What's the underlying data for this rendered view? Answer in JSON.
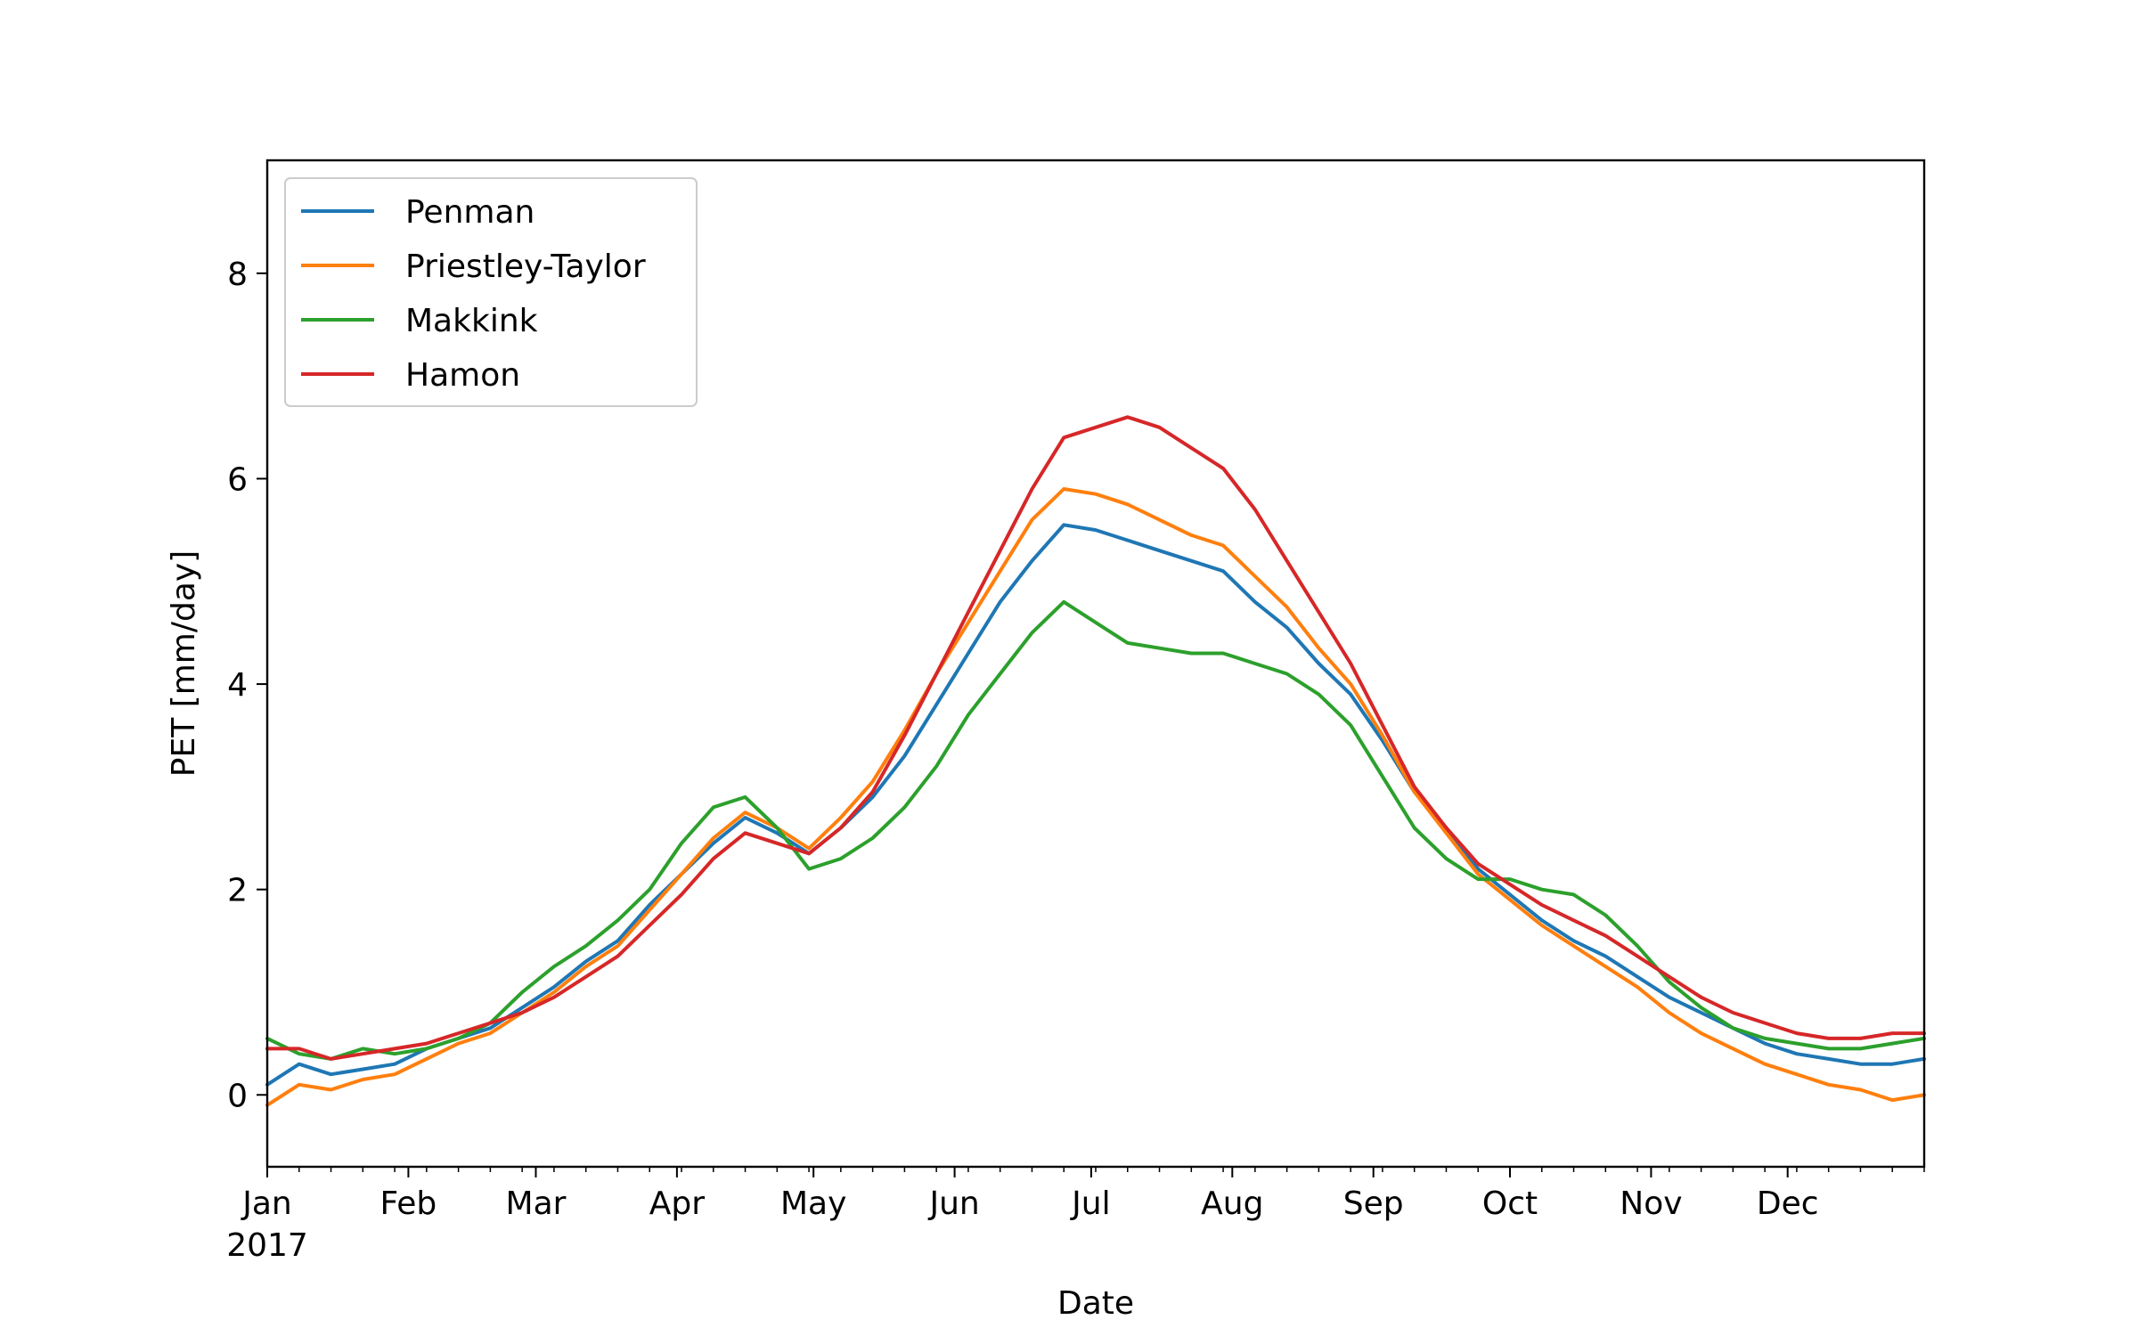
{
  "chart_data": {
    "type": "line",
    "title": "",
    "xlabel": "Date",
    "ylabel": "PET [mm/day]",
    "x_start": "2017-01-01",
    "x_end": "2017-12-31",
    "x_tick_labels": [
      "Jan",
      "Feb",
      "Mar",
      "Apr",
      "May",
      "Jun",
      "Jul",
      "Aug",
      "Sep",
      "Oct",
      "Nov",
      "Dec"
    ],
    "x_year_label": "2017",
    "y_ticks": [
      0,
      2,
      4,
      6,
      8
    ],
    "ylim": [
      -0.7,
      9.1
    ],
    "grid": false,
    "legend_position": "upper-left",
    "series": [
      {
        "name": "Penman",
        "color": "#1f77b4",
        "points": [
          [
            "2017-01-01",
            0.1
          ],
          [
            "2017-01-08",
            0.3
          ],
          [
            "2017-01-15",
            0.2
          ],
          [
            "2017-01-22",
            0.25
          ],
          [
            "2017-01-29",
            0.3
          ],
          [
            "2017-02-05",
            0.45
          ],
          [
            "2017-02-12",
            0.55
          ],
          [
            "2017-02-19",
            0.65
          ],
          [
            "2017-02-26",
            0.85
          ],
          [
            "2017-03-05",
            1.05
          ],
          [
            "2017-03-12",
            1.3
          ],
          [
            "2017-03-19",
            1.5
          ],
          [
            "2017-03-26",
            1.85
          ],
          [
            "2017-04-02",
            2.15
          ],
          [
            "2017-04-09",
            2.45
          ],
          [
            "2017-04-16",
            2.7
          ],
          [
            "2017-04-23",
            2.55
          ],
          [
            "2017-04-30",
            2.35
          ],
          [
            "2017-05-07",
            2.6
          ],
          [
            "2017-05-14",
            2.9
          ],
          [
            "2017-05-21",
            3.3
          ],
          [
            "2017-05-28",
            3.8
          ],
          [
            "2017-06-04",
            4.3
          ],
          [
            "2017-06-11",
            4.8
          ],
          [
            "2017-06-18",
            5.2
          ],
          [
            "2017-06-25",
            5.55
          ],
          [
            "2017-07-02",
            5.5
          ],
          [
            "2017-07-09",
            5.4
          ],
          [
            "2017-07-16",
            5.3
          ],
          [
            "2017-07-23",
            5.2
          ],
          [
            "2017-07-30",
            5.1
          ],
          [
            "2017-08-06",
            4.8
          ],
          [
            "2017-08-13",
            4.55
          ],
          [
            "2017-08-20",
            4.2
          ],
          [
            "2017-08-27",
            3.9
          ],
          [
            "2017-09-03",
            3.45
          ],
          [
            "2017-09-10",
            2.95
          ],
          [
            "2017-09-17",
            2.6
          ],
          [
            "2017-09-24",
            2.2
          ],
          [
            "2017-10-01",
            1.95
          ],
          [
            "2017-10-08",
            1.7
          ],
          [
            "2017-10-15",
            1.5
          ],
          [
            "2017-10-22",
            1.35
          ],
          [
            "2017-10-29",
            1.15
          ],
          [
            "2017-11-05",
            0.95
          ],
          [
            "2017-11-12",
            0.8
          ],
          [
            "2017-11-19",
            0.65
          ],
          [
            "2017-11-26",
            0.5
          ],
          [
            "2017-12-03",
            0.4
          ],
          [
            "2017-12-10",
            0.35
          ],
          [
            "2017-12-17",
            0.3
          ],
          [
            "2017-12-24",
            0.3
          ],
          [
            "2017-12-31",
            0.35
          ]
        ]
      },
      {
        "name": "Priestley-Taylor",
        "color": "#ff7f0e",
        "points": [
          [
            "2017-01-01",
            -0.1
          ],
          [
            "2017-01-08",
            0.1
          ],
          [
            "2017-01-15",
            0.05
          ],
          [
            "2017-01-22",
            0.15
          ],
          [
            "2017-01-29",
            0.2
          ],
          [
            "2017-02-05",
            0.35
          ],
          [
            "2017-02-12",
            0.5
          ],
          [
            "2017-02-19",
            0.6
          ],
          [
            "2017-02-26",
            0.8
          ],
          [
            "2017-03-05",
            1.0
          ],
          [
            "2017-03-12",
            1.25
          ],
          [
            "2017-03-19",
            1.45
          ],
          [
            "2017-03-26",
            1.8
          ],
          [
            "2017-04-02",
            2.15
          ],
          [
            "2017-04-09",
            2.5
          ],
          [
            "2017-04-16",
            2.75
          ],
          [
            "2017-04-23",
            2.6
          ],
          [
            "2017-04-30",
            2.4
          ],
          [
            "2017-05-07",
            2.7
          ],
          [
            "2017-05-14",
            3.05
          ],
          [
            "2017-05-21",
            3.55
          ],
          [
            "2017-05-28",
            4.1
          ],
          [
            "2017-06-04",
            4.6
          ],
          [
            "2017-06-11",
            5.1
          ],
          [
            "2017-06-18",
            5.6
          ],
          [
            "2017-06-25",
            5.9
          ],
          [
            "2017-07-02",
            5.85
          ],
          [
            "2017-07-09",
            5.75
          ],
          [
            "2017-07-16",
            5.6
          ],
          [
            "2017-07-23",
            5.45
          ],
          [
            "2017-07-30",
            5.35
          ],
          [
            "2017-08-06",
            5.05
          ],
          [
            "2017-08-13",
            4.75
          ],
          [
            "2017-08-20",
            4.35
          ],
          [
            "2017-08-27",
            4.0
          ],
          [
            "2017-09-03",
            3.5
          ],
          [
            "2017-09-10",
            2.95
          ],
          [
            "2017-09-17",
            2.55
          ],
          [
            "2017-09-24",
            2.15
          ],
          [
            "2017-10-01",
            1.9
          ],
          [
            "2017-10-08",
            1.65
          ],
          [
            "2017-10-15",
            1.45
          ],
          [
            "2017-10-22",
            1.25
          ],
          [
            "2017-10-29",
            1.05
          ],
          [
            "2017-11-05",
            0.8
          ],
          [
            "2017-11-12",
            0.6
          ],
          [
            "2017-11-19",
            0.45
          ],
          [
            "2017-11-26",
            0.3
          ],
          [
            "2017-12-03",
            0.2
          ],
          [
            "2017-12-10",
            0.1
          ],
          [
            "2017-12-17",
            0.05
          ],
          [
            "2017-12-24",
            -0.05
          ],
          [
            "2017-12-31",
            0.0
          ]
        ]
      },
      {
        "name": "Makkink",
        "color": "#2ca02c",
        "points": [
          [
            "2017-01-01",
            0.55
          ],
          [
            "2017-01-08",
            0.4
          ],
          [
            "2017-01-15",
            0.35
          ],
          [
            "2017-01-22",
            0.45
          ],
          [
            "2017-01-29",
            0.4
          ],
          [
            "2017-02-05",
            0.45
          ],
          [
            "2017-02-12",
            0.55
          ],
          [
            "2017-02-19",
            0.7
          ],
          [
            "2017-02-26",
            1.0
          ],
          [
            "2017-03-05",
            1.25
          ],
          [
            "2017-03-12",
            1.45
          ],
          [
            "2017-03-19",
            1.7
          ],
          [
            "2017-03-26",
            2.0
          ],
          [
            "2017-04-02",
            2.45
          ],
          [
            "2017-04-09",
            2.8
          ],
          [
            "2017-04-16",
            2.9
          ],
          [
            "2017-04-23",
            2.6
          ],
          [
            "2017-04-30",
            2.2
          ],
          [
            "2017-05-07",
            2.3
          ],
          [
            "2017-05-14",
            2.5
          ],
          [
            "2017-05-21",
            2.8
          ],
          [
            "2017-05-28",
            3.2
          ],
          [
            "2017-06-04",
            3.7
          ],
          [
            "2017-06-11",
            4.1
          ],
          [
            "2017-06-18",
            4.5
          ],
          [
            "2017-06-25",
            4.8
          ],
          [
            "2017-07-02",
            4.6
          ],
          [
            "2017-07-09",
            4.4
          ],
          [
            "2017-07-16",
            4.35
          ],
          [
            "2017-07-23",
            4.3
          ],
          [
            "2017-07-30",
            4.3
          ],
          [
            "2017-08-06",
            4.2
          ],
          [
            "2017-08-13",
            4.1
          ],
          [
            "2017-08-20",
            3.9
          ],
          [
            "2017-08-27",
            3.6
          ],
          [
            "2017-09-03",
            3.1
          ],
          [
            "2017-09-10",
            2.6
          ],
          [
            "2017-09-17",
            2.3
          ],
          [
            "2017-09-24",
            2.1
          ],
          [
            "2017-10-01",
            2.1
          ],
          [
            "2017-10-08",
            2.0
          ],
          [
            "2017-10-15",
            1.95
          ],
          [
            "2017-10-22",
            1.75
          ],
          [
            "2017-10-29",
            1.45
          ],
          [
            "2017-11-05",
            1.1
          ],
          [
            "2017-11-12",
            0.85
          ],
          [
            "2017-11-19",
            0.65
          ],
          [
            "2017-11-26",
            0.55
          ],
          [
            "2017-12-03",
            0.5
          ],
          [
            "2017-12-10",
            0.45
          ],
          [
            "2017-12-17",
            0.45
          ],
          [
            "2017-12-24",
            0.5
          ],
          [
            "2017-12-31",
            0.55
          ]
        ]
      },
      {
        "name": "Hamon",
        "color": "#d62728",
        "points": [
          [
            "2017-01-01",
            0.45
          ],
          [
            "2017-01-08",
            0.45
          ],
          [
            "2017-01-15",
            0.35
          ],
          [
            "2017-01-22",
            0.4
          ],
          [
            "2017-01-29",
            0.45
          ],
          [
            "2017-02-05",
            0.5
          ],
          [
            "2017-02-12",
            0.6
          ],
          [
            "2017-02-19",
            0.7
          ],
          [
            "2017-02-26",
            0.8
          ],
          [
            "2017-03-05",
            0.95
          ],
          [
            "2017-03-12",
            1.15
          ],
          [
            "2017-03-19",
            1.35
          ],
          [
            "2017-03-26",
            1.65
          ],
          [
            "2017-04-02",
            1.95
          ],
          [
            "2017-04-09",
            2.3
          ],
          [
            "2017-04-16",
            2.55
          ],
          [
            "2017-04-23",
            2.45
          ],
          [
            "2017-04-30",
            2.35
          ],
          [
            "2017-05-07",
            2.6
          ],
          [
            "2017-05-14",
            2.95
          ],
          [
            "2017-05-21",
            3.5
          ],
          [
            "2017-05-28",
            4.1
          ],
          [
            "2017-06-04",
            4.7
          ],
          [
            "2017-06-11",
            5.3
          ],
          [
            "2017-06-18",
            5.9
          ],
          [
            "2017-06-25",
            6.4
          ],
          [
            "2017-07-02",
            6.5
          ],
          [
            "2017-07-09",
            6.6
          ],
          [
            "2017-07-16",
            6.5
          ],
          [
            "2017-07-23",
            6.3
          ],
          [
            "2017-07-30",
            6.1
          ],
          [
            "2017-08-06",
            5.7
          ],
          [
            "2017-08-13",
            5.2
          ],
          [
            "2017-08-20",
            4.7
          ],
          [
            "2017-08-27",
            4.2
          ],
          [
            "2017-09-03",
            3.6
          ],
          [
            "2017-09-10",
            3.0
          ],
          [
            "2017-09-17",
            2.6
          ],
          [
            "2017-09-24",
            2.25
          ],
          [
            "2017-10-01",
            2.05
          ],
          [
            "2017-10-08",
            1.85
          ],
          [
            "2017-10-15",
            1.7
          ],
          [
            "2017-10-22",
            1.55
          ],
          [
            "2017-10-29",
            1.35
          ],
          [
            "2017-11-05",
            1.15
          ],
          [
            "2017-11-12",
            0.95
          ],
          [
            "2017-11-19",
            0.8
          ],
          [
            "2017-11-26",
            0.7
          ],
          [
            "2017-12-03",
            0.6
          ],
          [
            "2017-12-10",
            0.55
          ],
          [
            "2017-12-17",
            0.55
          ],
          [
            "2017-12-24",
            0.6
          ],
          [
            "2017-12-31",
            0.6
          ]
        ]
      }
    ]
  }
}
